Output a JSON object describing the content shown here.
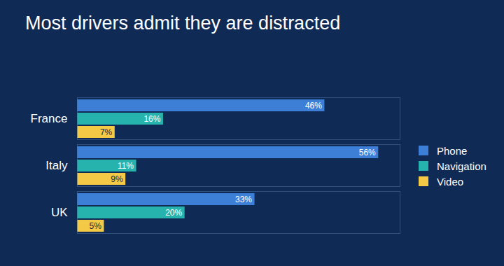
{
  "chart_data": {
    "type": "bar",
    "title": "Most drivers admit they are distracted",
    "orientation": "horizontal",
    "categories": [
      "France",
      "Italy",
      "UK"
    ],
    "series": [
      {
        "name": "Phone",
        "color": "#3d7fd6",
        "values": [
          46,
          56,
          33
        ],
        "value_labels": [
          "46%",
          "56%",
          "33%"
        ]
      },
      {
        "name": "Navigation",
        "color": "#27b3ad",
        "values": [
          16,
          11,
          20
        ],
        "value_labels": [
          "16%",
          "11%",
          "20%"
        ]
      },
      {
        "name": "Video",
        "color": "#f4c945",
        "values": [
          7,
          9,
          5
        ],
        "value_labels": [
          "7%",
          "9%",
          "5%"
        ]
      }
    ],
    "xlim": [
      0,
      60
    ],
    "data_labels": true,
    "tick_labels": "y",
    "legend": "right"
  }
}
